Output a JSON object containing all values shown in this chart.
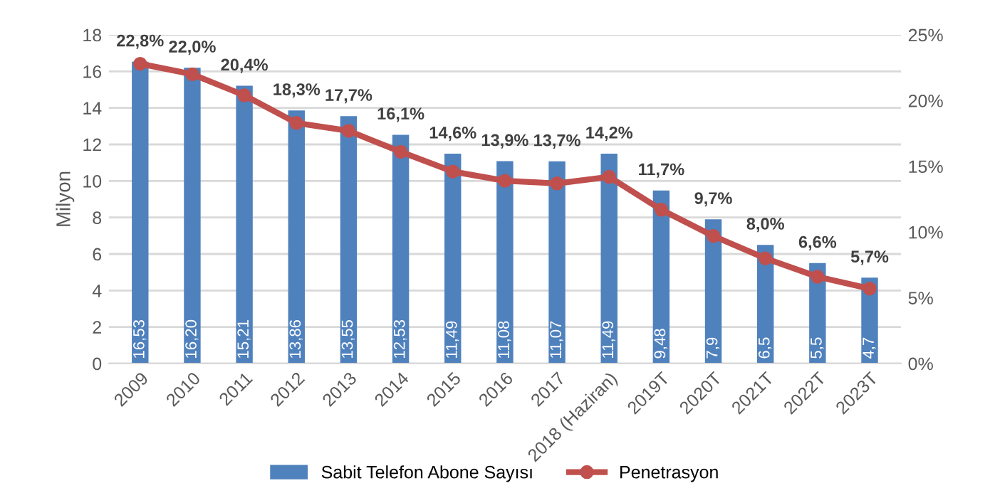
{
  "chart_data": {
    "type": "bar",
    "ylabel": "Milyon",
    "categories": [
      "2009",
      "2010",
      "2011",
      "2012",
      "2013",
      "2014",
      "2015",
      "2016",
      "2017",
      "2018 (Haziran)",
      "2019T",
      "2020T",
      "2021T",
      "2022T",
      "2023T"
    ],
    "series": [
      {
        "name": "Sabit Telefon Abone Sayısı",
        "type": "bar",
        "color": "#4f81bd",
        "values": [
          16.53,
          16.2,
          15.21,
          13.86,
          13.55,
          12.53,
          11.49,
          11.08,
          11.07,
          11.49,
          9.48,
          7.9,
          6.5,
          5.5,
          4.7
        ],
        "value_labels": [
          "16,53",
          "16,20",
          "15,21",
          "13,86",
          "13,55",
          "12,53",
          "11,49",
          "11,08",
          "11,07",
          "11,49",
          "9,48",
          "7,9",
          "6,5",
          "5,5",
          "4,7"
        ]
      },
      {
        "name": "Penetrasyon",
        "type": "line",
        "axis": "y2",
        "color": "#c0504d",
        "marker": "circle",
        "values": [
          22.8,
          22.0,
          20.4,
          18.3,
          17.7,
          16.1,
          14.6,
          13.9,
          13.7,
          14.2,
          11.7,
          9.7,
          8.0,
          6.6,
          5.7
        ],
        "value_labels": [
          "22,8%",
          "22,0%",
          "20,4%",
          "18,3%",
          "17,7%",
          "16,1%",
          "14,6%",
          "13,9%",
          "13,7%",
          "14,2%",
          "11,7%",
          "9,7%",
          "8,0%",
          "6,6%",
          "5,7%"
        ]
      }
    ],
    "ylim": [
      0,
      18
    ],
    "yticks": [
      0,
      2,
      4,
      6,
      8,
      10,
      12,
      14,
      16,
      18
    ],
    "y2lim": [
      0,
      25
    ],
    "y2ticks": [
      {
        "value": 0,
        "label": "0%"
      },
      {
        "value": 5,
        "label": "5%"
      },
      {
        "value": 10,
        "label": "10%"
      },
      {
        "value": 15,
        "label": "15%"
      },
      {
        "value": 20,
        "label": "20%"
      },
      {
        "value": 25,
        "label": "25%"
      }
    ],
    "grid": "y",
    "legend": "bottom"
  }
}
